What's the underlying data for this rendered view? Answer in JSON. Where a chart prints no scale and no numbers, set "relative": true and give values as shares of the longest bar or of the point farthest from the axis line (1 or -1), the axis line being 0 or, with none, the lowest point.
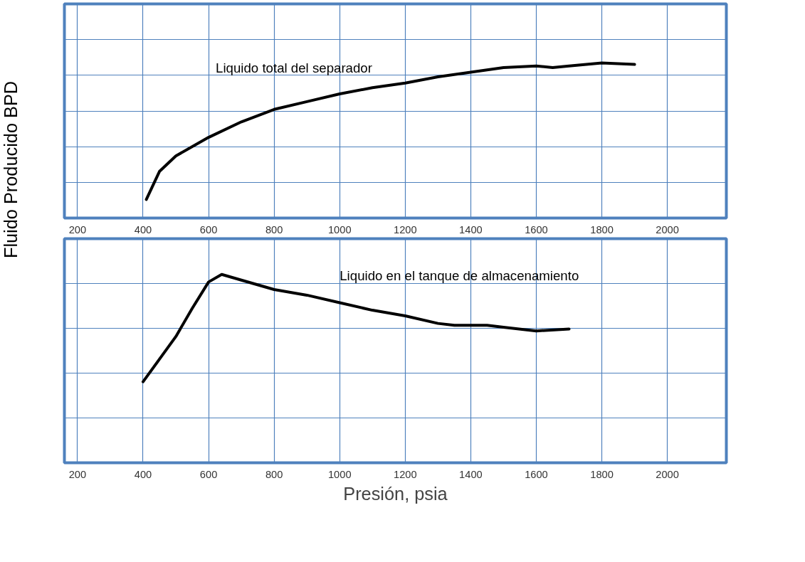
{
  "chart_data": [
    {
      "type": "line",
      "relative": true,
      "ylabel": "Fluido Producido BPD",
      "xlim": [
        160,
        2180
      ],
      "xticks": [
        200,
        400,
        600,
        800,
        1000,
        1200,
        1400,
        1600,
        1800,
        2000
      ],
      "grid": true,
      "tick_labels": "x",
      "marker": "none",
      "line_style": "solid",
      "series": [
        {
          "name": "Liquido total del separador",
          "color": "#000000",
          "x": [
            410,
            450,
            500,
            600,
            700,
            800,
            900,
            1000,
            1100,
            1200,
            1300,
            1400,
            1500,
            1600,
            1650,
            1700,
            1800,
            1900
          ],
          "values": [
            0.12,
            0.3,
            0.4,
            0.52,
            0.62,
            0.7,
            0.75,
            0.8,
            0.84,
            0.87,
            0.91,
            0.94,
            0.97,
            0.98,
            0.97,
            0.98,
            1.0,
            0.99
          ]
        }
      ]
    },
    {
      "type": "line",
      "relative": true,
      "xlabel": "Presión, psia",
      "xlim": [
        160,
        2180
      ],
      "xticks": [
        200,
        400,
        600,
        800,
        1000,
        1200,
        1400,
        1600,
        1800,
        2000
      ],
      "grid": true,
      "tick_labels": "x",
      "marker": "none",
      "line_style": "solid",
      "series": [
        {
          "name": "Liquido en el tanque de almacenamiento",
          "color": "#000000",
          "x": [
            400,
            450,
            500,
            550,
            600,
            640,
            700,
            800,
            900,
            1000,
            1100,
            1200,
            1300,
            1350,
            1450,
            1500,
            1600,
            1700
          ],
          "values": [
            0.43,
            0.55,
            0.67,
            0.82,
            0.96,
            1.0,
            0.97,
            0.92,
            0.89,
            0.85,
            0.81,
            0.78,
            0.74,
            0.73,
            0.73,
            0.72,
            0.7,
            0.71
          ]
        }
      ]
    }
  ]
}
